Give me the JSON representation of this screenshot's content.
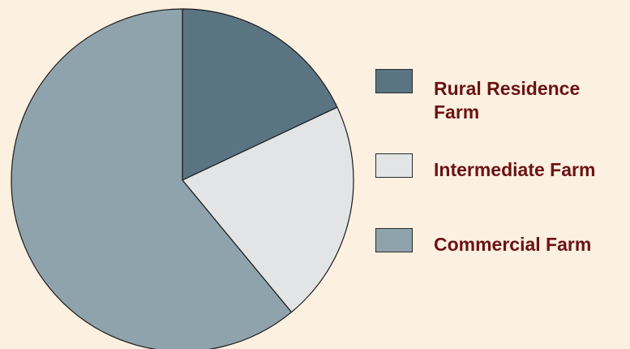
{
  "chart_data": {
    "type": "pie",
    "title": "",
    "start_angle_deg": 0,
    "direction": "clockwise",
    "slices": [
      {
        "label": "Rural Residence\nFarm",
        "value": 18.0,
        "color": "#5a7482"
      },
      {
        "label": "Intermediate Farm",
        "value": 21.0,
        "color": "#e2e4e6"
      },
      {
        "label": "Commercial Farm",
        "value": 61.0,
        "color": "#8fa3ad"
      }
    ],
    "legend_position": "right",
    "background_color": "#fcf0e1",
    "label_color": "#6b1313",
    "stroke_color": "#1a1a1a"
  }
}
